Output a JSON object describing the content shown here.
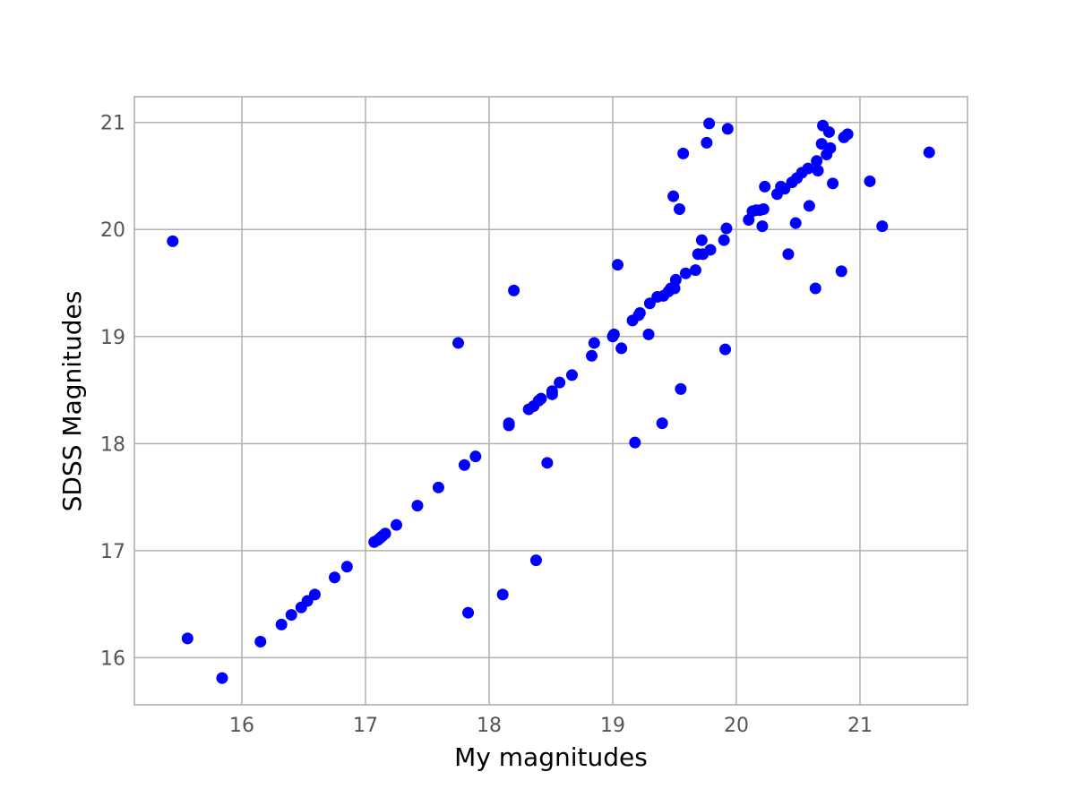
{
  "chart_data": {
    "type": "scatter",
    "title": "",
    "xlabel": "My magnitudes",
    "ylabel": "SDSS Magnitudes",
    "xlim": [
      15.13,
      21.87
    ],
    "ylim": [
      15.56,
      21.24
    ],
    "xticks": [
      16,
      17,
      18,
      19,
      20,
      21
    ],
    "yticks": [
      16,
      17,
      18,
      19,
      20,
      21
    ],
    "grid": true,
    "marker_color": "#0000ff",
    "points": [
      [
        15.44,
        19.89
      ],
      [
        15.56,
        16.18
      ],
      [
        15.84,
        15.81
      ],
      [
        16.15,
        16.15
      ],
      [
        16.32,
        16.31
      ],
      [
        16.4,
        16.4
      ],
      [
        16.48,
        16.47
      ],
      [
        16.53,
        16.53
      ],
      [
        16.59,
        16.59
      ],
      [
        16.75,
        16.75
      ],
      [
        16.85,
        16.85
      ],
      [
        17.07,
        17.08
      ],
      [
        17.1,
        17.1
      ],
      [
        17.12,
        17.12
      ],
      [
        17.14,
        17.14
      ],
      [
        17.16,
        17.16
      ],
      [
        17.25,
        17.24
      ],
      [
        17.42,
        17.42
      ],
      [
        17.59,
        17.59
      ],
      [
        17.75,
        18.94
      ],
      [
        17.8,
        17.8
      ],
      [
        17.83,
        16.42
      ],
      [
        17.89,
        17.88
      ],
      [
        18.11,
        16.59
      ],
      [
        18.16,
        18.17
      ],
      [
        18.16,
        18.19
      ],
      [
        18.2,
        19.43
      ],
      [
        18.32,
        18.32
      ],
      [
        18.36,
        18.35
      ],
      [
        18.38,
        16.91
      ],
      [
        18.4,
        18.4
      ],
      [
        18.42,
        18.42
      ],
      [
        18.47,
        17.82
      ],
      [
        18.51,
        18.46
      ],
      [
        18.51,
        18.49
      ],
      [
        18.57,
        18.57
      ],
      [
        18.67,
        18.64
      ],
      [
        18.83,
        18.82
      ],
      [
        18.85,
        18.94
      ],
      [
        19.0,
        19.0
      ],
      [
        19.01,
        19.02
      ],
      [
        19.04,
        19.67
      ],
      [
        19.07,
        18.89
      ],
      [
        19.16,
        19.15
      ],
      [
        19.18,
        18.01
      ],
      [
        19.21,
        19.2
      ],
      [
        19.22,
        19.22
      ],
      [
        19.29,
        19.02
      ],
      [
        19.3,
        19.31
      ],
      [
        19.36,
        19.37
      ],
      [
        19.4,
        18.19
      ],
      [
        19.41,
        19.38
      ],
      [
        19.45,
        19.42
      ],
      [
        19.47,
        19.45
      ],
      [
        19.49,
        20.31
      ],
      [
        19.5,
        19.45
      ],
      [
        19.51,
        19.53
      ],
      [
        19.54,
        20.19
      ],
      [
        19.55,
        18.51
      ],
      [
        19.57,
        20.71
      ],
      [
        19.59,
        19.59
      ],
      [
        19.67,
        19.62
      ],
      [
        19.69,
        19.77
      ],
      [
        19.72,
        19.9
      ],
      [
        19.73,
        19.77
      ],
      [
        19.76,
        20.81
      ],
      [
        19.78,
        20.99
      ],
      [
        19.79,
        19.81
      ],
      [
        19.9,
        19.9
      ],
      [
        19.91,
        18.88
      ],
      [
        19.92,
        20.01
      ],
      [
        19.93,
        20.94
      ],
      [
        20.1,
        20.09
      ],
      [
        20.13,
        20.17
      ],
      [
        20.16,
        20.18
      ],
      [
        20.19,
        20.18
      ],
      [
        20.21,
        20.03
      ],
      [
        20.22,
        20.19
      ],
      [
        20.23,
        20.4
      ],
      [
        20.33,
        20.33
      ],
      [
        20.36,
        20.4
      ],
      [
        20.39,
        20.38
      ],
      [
        20.42,
        19.77
      ],
      [
        20.45,
        20.44
      ],
      [
        20.48,
        20.06
      ],
      [
        20.49,
        20.48
      ],
      [
        20.53,
        20.53
      ],
      [
        20.58,
        20.57
      ],
      [
        20.59,
        20.22
      ],
      [
        20.64,
        19.45
      ],
      [
        20.65,
        20.64
      ],
      [
        20.66,
        20.55
      ],
      [
        20.69,
        20.8
      ],
      [
        20.7,
        20.97
      ],
      [
        20.73,
        20.7
      ],
      [
        20.75,
        20.91
      ],
      [
        20.76,
        20.76
      ],
      [
        20.78,
        20.43
      ],
      [
        20.85,
        19.61
      ],
      [
        20.87,
        20.86
      ],
      [
        20.9,
        20.89
      ],
      [
        21.08,
        20.45
      ],
      [
        21.18,
        20.03
      ],
      [
        21.56,
        20.72
      ]
    ]
  }
}
